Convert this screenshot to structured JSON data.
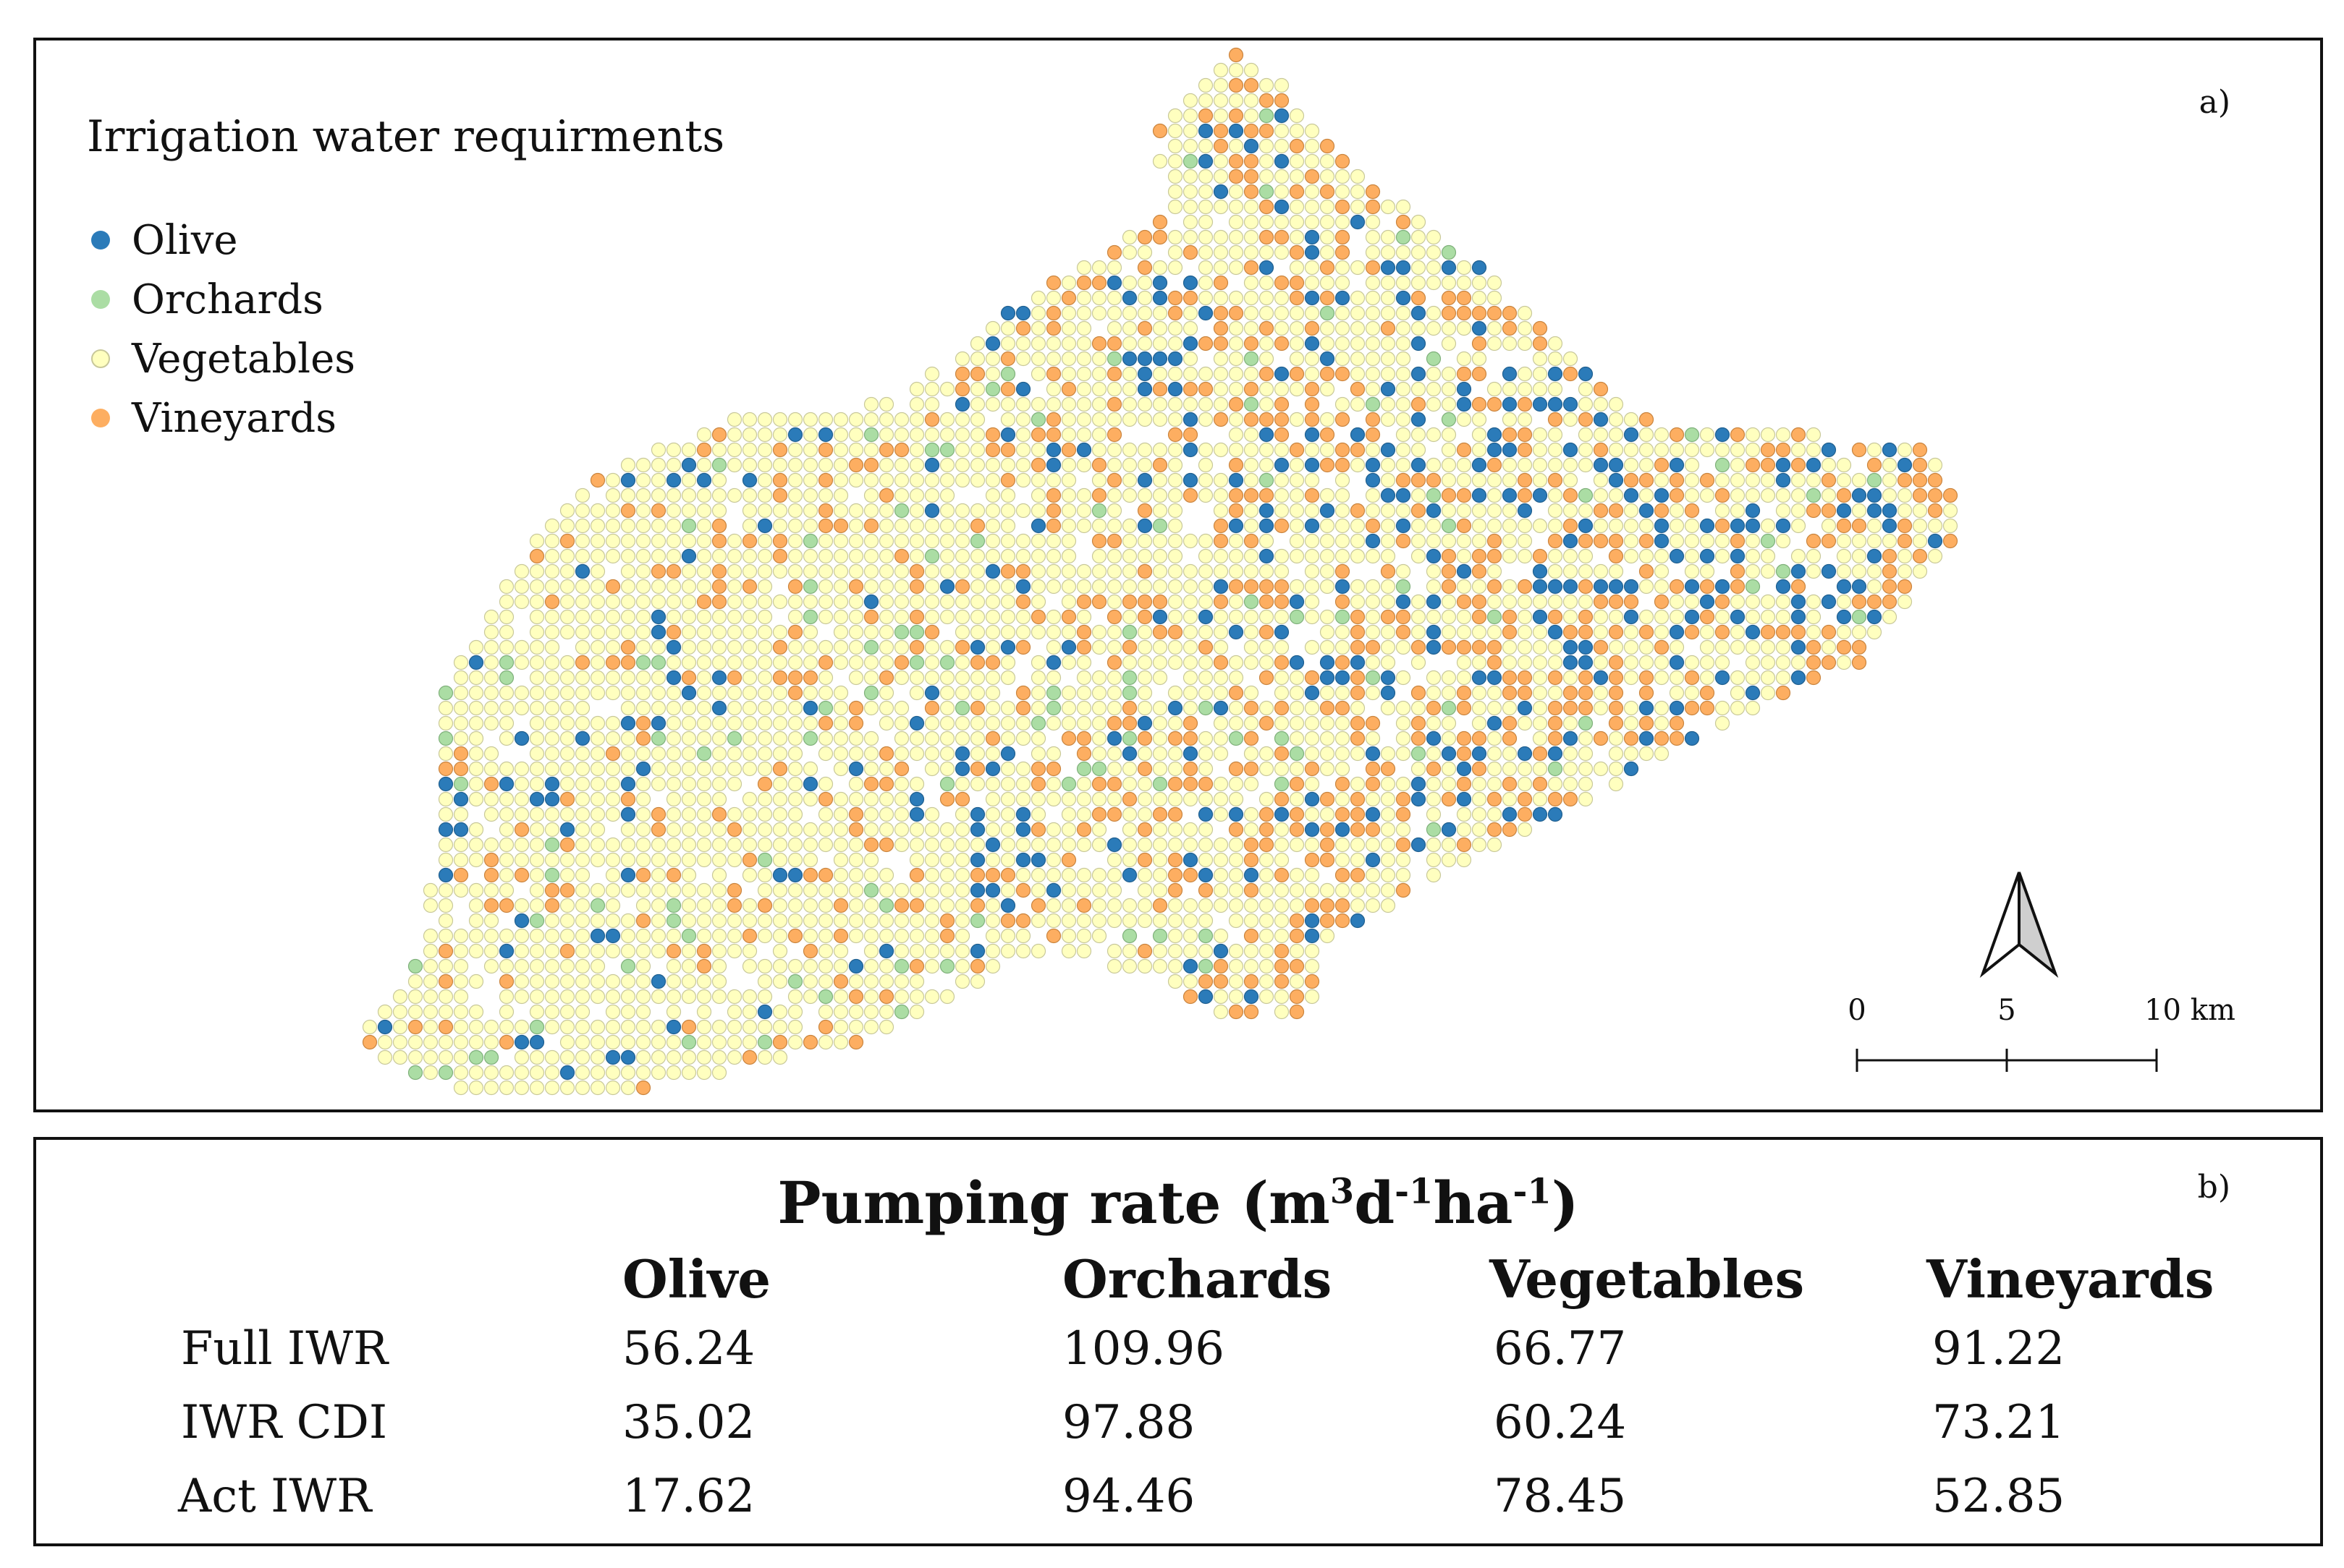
{
  "map": {
    "panel_label": "a)",
    "legend": {
      "title": "Irrigation water requirments",
      "items": [
        {
          "label": "Olive",
          "color": "#2b7bb9"
        },
        {
          "label": "Orchards",
          "color": "#abdda4"
        },
        {
          "label": "Vegetables",
          "color": "#ffffbf"
        },
        {
          "label": "Vineyards",
          "color": "#fdae61"
        }
      ]
    },
    "scale_bar": {
      "labels": [
        "0",
        "5",
        "10 km"
      ]
    },
    "north_arrow": "north-arrow-icon"
  },
  "table": {
    "panel_label": "b)",
    "title_main": "Pumping rate (m",
    "title_sup1": "3",
    "title_mid1": "d",
    "title_sup2": "-1",
    "title_mid2": "ha",
    "title_sup3": "-1",
    "title_end": ")",
    "columns": [
      "Olive",
      "Orchards",
      "Vegetables",
      "Vineyards"
    ],
    "rows": [
      {
        "label": "Full IWR",
        "values": [
          "56.24",
          "109.96",
          "66.77",
          "91.22"
        ]
      },
      {
        "label": "IWR CDI",
        "values": [
          "35.02",
          "97.88",
          "60.24",
          "73.21"
        ]
      },
      {
        "label": "Act IWR",
        "values": [
          "17.62",
          "94.46",
          "78.45",
          "52.85"
        ]
      }
    ]
  }
}
